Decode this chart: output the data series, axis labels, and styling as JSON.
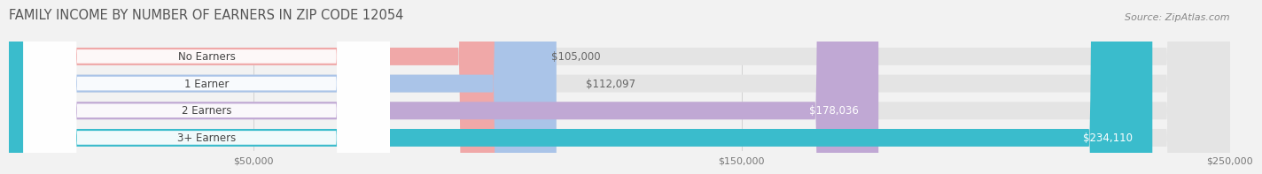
{
  "title": "FAMILY INCOME BY NUMBER OF EARNERS IN ZIP CODE 12054",
  "source": "Source: ZipAtlas.com",
  "categories": [
    "No Earners",
    "1 Earner",
    "2 Earners",
    "3+ Earners"
  ],
  "values": [
    105000,
    112097,
    178036,
    234110
  ],
  "labels": [
    "$105,000",
    "$112,097",
    "$178,036",
    "$234,110"
  ],
  "bar_colors": [
    "#f0a8a8",
    "#aac4e8",
    "#c0a8d4",
    "#3abccc"
  ],
  "label_colors": [
    "#666666",
    "#666666",
    "#ffffff",
    "#ffffff"
  ],
  "x_min": 0,
  "x_max": 250000,
  "x_ticks": [
    50000,
    150000,
    250000
  ],
  "x_tick_labels": [
    "$50,000",
    "$150,000",
    "$250,000"
  ],
  "background_color": "#f2f2f2",
  "bar_background": "#e4e4e4",
  "title_fontsize": 10.5,
  "source_fontsize": 8,
  "label_fontsize": 8.5,
  "category_fontsize": 8.5
}
